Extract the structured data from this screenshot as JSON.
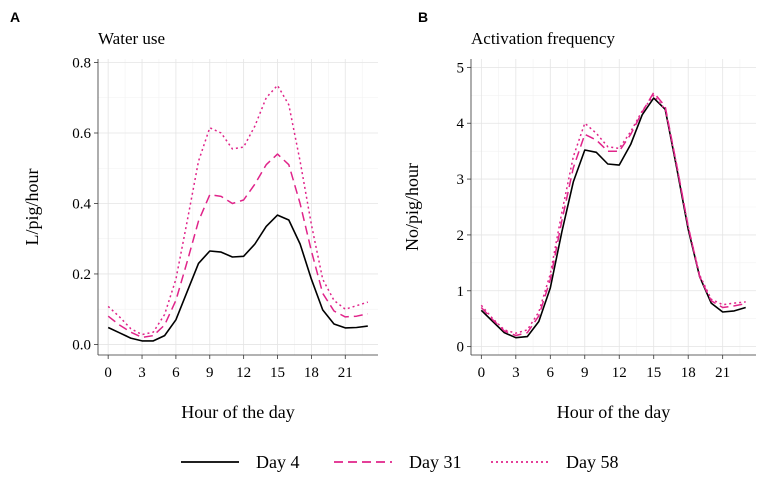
{
  "colors": {
    "day4": "#000000",
    "day31": "#e0248a",
    "day58": "#e0248a"
  },
  "legend": [
    {
      "label": "Day 4",
      "style": "solid"
    },
    {
      "label": "Day 31",
      "style": "dashed"
    },
    {
      "label": "Day 58",
      "style": "dotted"
    }
  ],
  "chart_data": [
    {
      "type": "line",
      "panel": "A",
      "title": "Water use",
      "xlabel": "Hour of the day",
      "ylabel": "L/pig/hour",
      "xlim": [
        -0.9,
        23.9
      ],
      "ylim": [
        -0.03,
        0.81
      ],
      "xticks": [
        0,
        3,
        6,
        9,
        12,
        15,
        18,
        21
      ],
      "yticks": [
        0.0,
        0.2,
        0.4,
        0.6,
        0.8
      ],
      "ytick_labels": [
        "0.0",
        "0.2",
        "0.4",
        "0.6",
        "0.8"
      ],
      "grid": true,
      "x": [
        0,
        1,
        2,
        3,
        4,
        5,
        6,
        7,
        8,
        9,
        10,
        11,
        12,
        13,
        14,
        15,
        16,
        17,
        18,
        19,
        20,
        21,
        22,
        23
      ],
      "series": [
        {
          "name": "Day 4",
          "style": "solid",
          "values": [
            0.048,
            0.033,
            0.018,
            0.01,
            0.01,
            0.025,
            0.07,
            0.15,
            0.23,
            0.265,
            0.262,
            0.248,
            0.25,
            0.285,
            0.335,
            0.367,
            0.353,
            0.285,
            0.185,
            0.098,
            0.058,
            0.047,
            0.048,
            0.052
          ]
        },
        {
          "name": "Day 31",
          "style": "dashed",
          "values": [
            0.08,
            0.055,
            0.035,
            0.02,
            0.025,
            0.055,
            0.125,
            0.235,
            0.35,
            0.425,
            0.42,
            0.4,
            0.41,
            0.455,
            0.51,
            0.54,
            0.51,
            0.4,
            0.265,
            0.145,
            0.095,
            0.078,
            0.08,
            0.087
          ]
        },
        {
          "name": "Day 58",
          "style": "dotted",
          "values": [
            0.108,
            0.078,
            0.045,
            0.028,
            0.035,
            0.085,
            0.185,
            0.35,
            0.52,
            0.615,
            0.6,
            0.555,
            0.56,
            0.62,
            0.7,
            0.735,
            0.68,
            0.52,
            0.34,
            0.185,
            0.125,
            0.1,
            0.11,
            0.12
          ]
        }
      ]
    },
    {
      "type": "line",
      "panel": "B",
      "title": "Activation frequency",
      "xlabel": "Hour of the day",
      "ylabel": "No/pig/hour",
      "xlim": [
        -0.9,
        23.9
      ],
      "ylim": [
        -0.15,
        5.15
      ],
      "xticks": [
        0,
        3,
        6,
        9,
        12,
        15,
        18,
        21
      ],
      "yticks": [
        0,
        1,
        2,
        3,
        4,
        5
      ],
      "ytick_labels": [
        "0",
        "1",
        "2",
        "3",
        "4",
        "5"
      ],
      "grid": true,
      "x": [
        0,
        1,
        2,
        3,
        4,
        5,
        6,
        7,
        8,
        9,
        10,
        11,
        12,
        13,
        14,
        15,
        16,
        17,
        18,
        19,
        20,
        21,
        22,
        23
      ],
      "series": [
        {
          "name": "Day 4",
          "style": "solid",
          "values": [
            0.65,
            0.45,
            0.25,
            0.16,
            0.18,
            0.45,
            1.05,
            2.05,
            2.95,
            3.52,
            3.48,
            3.27,
            3.25,
            3.62,
            4.15,
            4.45,
            4.25,
            3.2,
            2.1,
            1.25,
            0.78,
            0.62,
            0.64,
            0.7
          ]
        },
        {
          "name": "Day 31",
          "style": "dashed",
          "values": [
            0.7,
            0.48,
            0.28,
            0.2,
            0.25,
            0.55,
            1.2,
            2.25,
            3.2,
            3.8,
            3.7,
            3.5,
            3.5,
            3.8,
            4.2,
            4.55,
            4.3,
            3.25,
            2.15,
            1.25,
            0.82,
            0.7,
            0.73,
            0.77
          ]
        },
        {
          "name": "Day 58",
          "style": "dotted",
          "values": [
            0.74,
            0.5,
            0.3,
            0.24,
            0.3,
            0.62,
            1.3,
            2.4,
            3.4,
            4.0,
            3.82,
            3.58,
            3.55,
            3.85,
            4.22,
            4.5,
            4.25,
            3.25,
            2.15,
            1.28,
            0.85,
            0.75,
            0.78,
            0.8
          ]
        }
      ]
    }
  ]
}
